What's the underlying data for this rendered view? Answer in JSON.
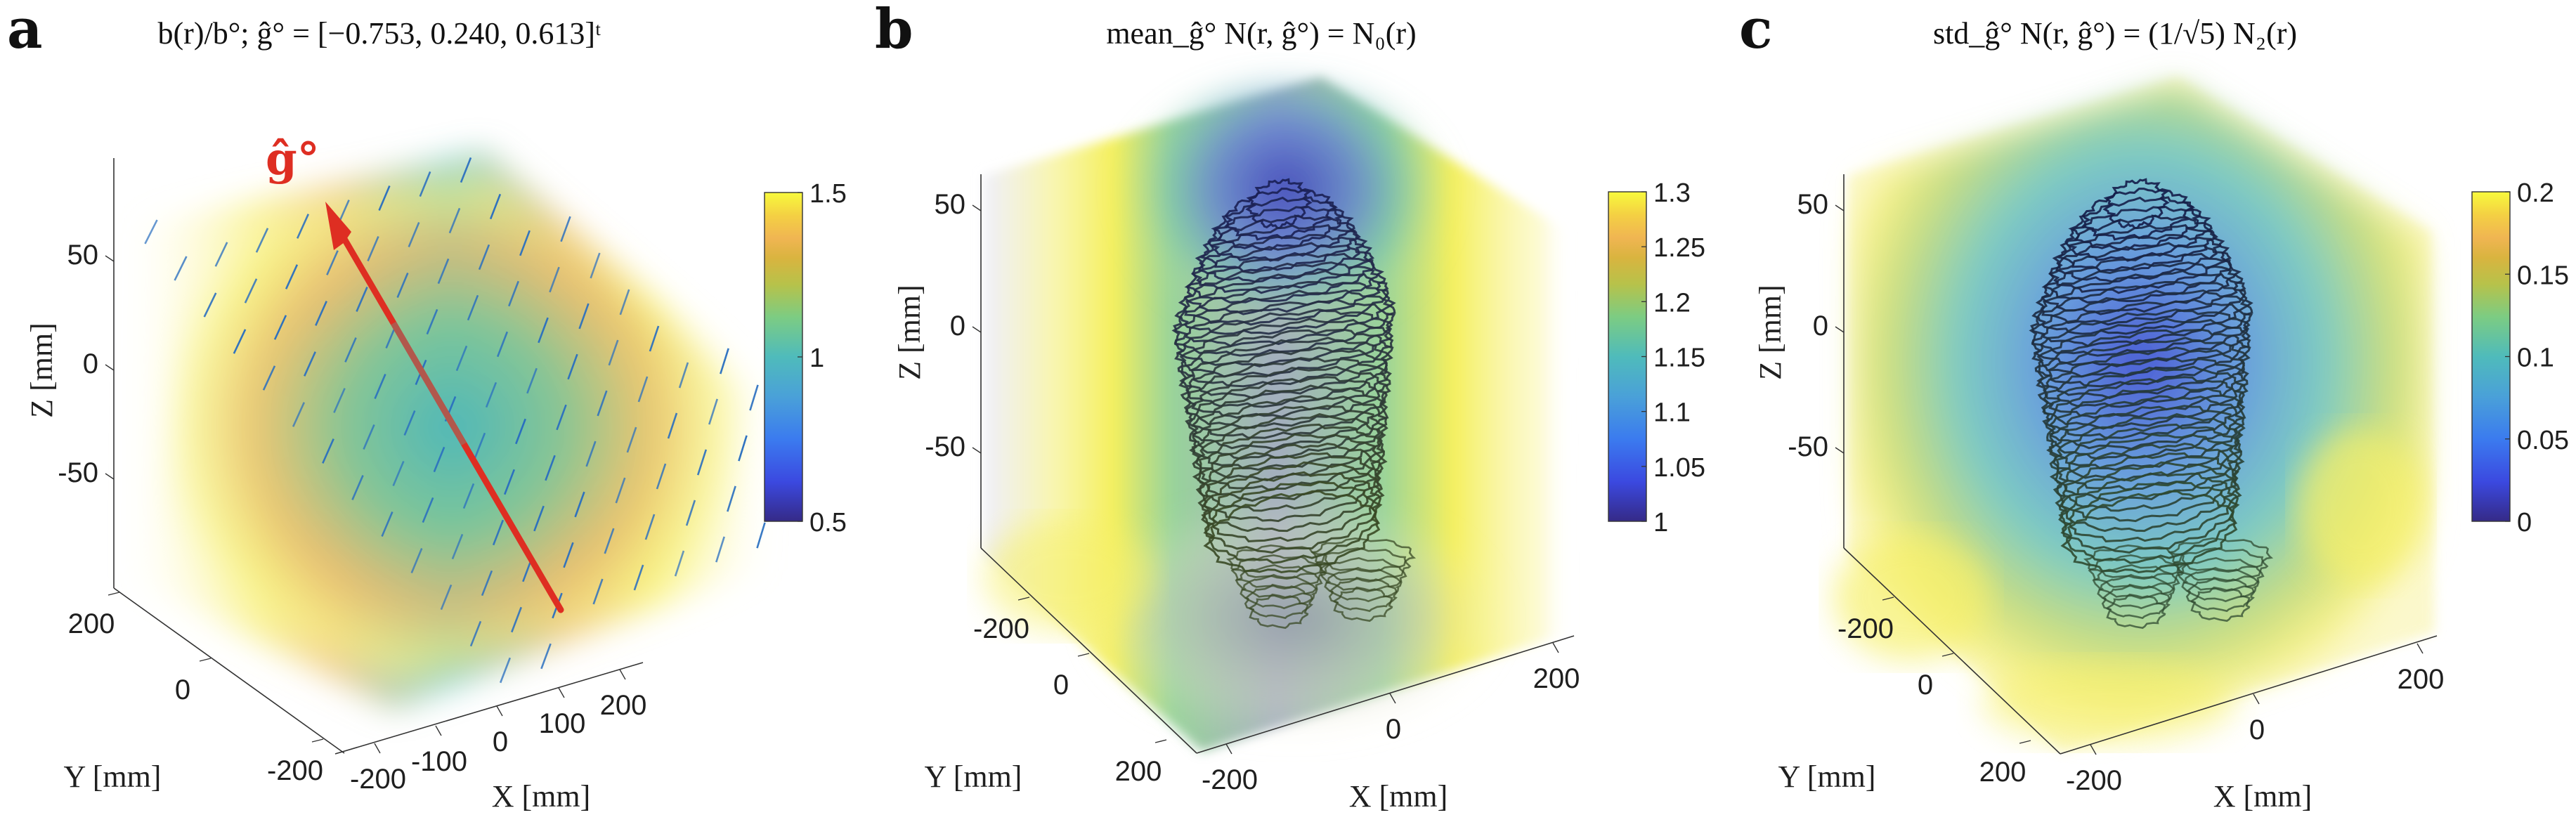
{
  "figure": {
    "panels": [
      {
        "letter": "a",
        "title": "b(r)/b°; ĝ° = [−0.753, 0.240, 0.613]ᵗ",
        "arrow_label": "ĝ°",
        "arrow_vector": [
          -0.753,
          0.24,
          0.613
        ],
        "arrow_color": "#de2e22",
        "quiver_color": "#2a6fc0",
        "overlay": "quiver",
        "colorbar": {
          "min": 0.5,
          "max": 1.5,
          "ticks": [
            "0.5",
            "1",
            "1.5"
          ],
          "tick_values": [
            0.5,
            1,
            1.5
          ]
        },
        "axes": {
          "x": {
            "label": "X [mm]",
            "ticks": [
              "-200",
              "-100",
              "0",
              "100",
              "200"
            ],
            "tick_values": [
              -200,
              -100,
              0,
              100,
              200
            ],
            "range": [
              -250,
              250
            ]
          },
          "y": {
            "label": "Y [mm]",
            "ticks": [
              "-200",
              "0",
              "200"
            ],
            "tick_values": [
              -200,
              0,
              200
            ],
            "range": [
              -250,
              250
            ]
          },
          "z": {
            "label": "Z [mm]",
            "ticks": [
              "-50",
              "0",
              "50"
            ],
            "tick_values": [
              -50,
              0,
              50
            ],
            "range": [
              -85,
              95
            ]
          }
        }
      },
      {
        "letter": "b",
        "title": "mean_ĝ° N(r, ĝ°) = N₀(r)",
        "overlay": "head",
        "colorbar": {
          "min": 1,
          "max": 1.3,
          "ticks": [
            "1",
            "1.05",
            "1.1",
            "1.15",
            "1.2",
            "1.25",
            "1.3"
          ],
          "tick_values": [
            1,
            1.05,
            1.1,
            1.15,
            1.2,
            1.25,
            1.3
          ]
        },
        "axes": {
          "x": {
            "label": "X [mm]",
            "ticks": [
              "-200",
              "0",
              "200"
            ],
            "tick_values": [
              -200,
              0,
              200
            ],
            "range": [
              -250,
              250
            ]
          },
          "y": {
            "label": "Y [mm]",
            "ticks": [
              "-200",
              "0",
              "200"
            ],
            "tick_values": [
              -200,
              0,
              200
            ],
            "range": [
              -250,
              250
            ]
          },
          "z": {
            "label": "Z [mm]",
            "ticks": [
              "-50",
              "0",
              "50"
            ],
            "tick_values": [
              -50,
              0,
              50
            ],
            "range": [
              -80,
              65
            ]
          }
        }
      },
      {
        "letter": "c",
        "title": "std_ĝ° N(r, ĝ°) = (1/√5) N₂(r)",
        "overlay": "head",
        "colorbar": {
          "min": 0,
          "max": 0.2,
          "ticks": [
            "0",
            "0.05",
            "0.1",
            "0.15",
            "0.2"
          ],
          "tick_values": [
            0,
            0.05,
            0.1,
            0.15,
            0.2
          ]
        },
        "axes": {
          "x": {
            "label": "X [mm]",
            "ticks": [
              "-200",
              "0",
              "200"
            ],
            "tick_values": [
              -200,
              0,
              200
            ],
            "range": [
              -250,
              250
            ]
          },
          "y": {
            "label": "Y [mm]",
            "ticks": [
              "-200",
              "0",
              "200"
            ],
            "tick_values": [
              -200,
              0,
              200
            ],
            "range": [
              -250,
              250
            ]
          },
          "z": {
            "label": "Z [mm]",
            "ticks": [
              "-50",
              "0",
              "50"
            ],
            "tick_values": [
              -50,
              0,
              50
            ],
            "range": [
              -80,
              65
            ]
          }
        }
      }
    ]
  },
  "chart_data": [
    {
      "type": "heatmap",
      "title": "b(r)/b°; ĝ° = [−0.753, 0.240, 0.613]ᵗ",
      "xlabel": "X [mm]",
      "ylabel": "Y [mm]",
      "zlabel": "Z [mm]",
      "colormap": "parula",
      "clim": [
        0.5,
        1.5
      ],
      "colorbar_ticks": [
        0.5,
        1,
        1.5
      ],
      "annotation": "ĝ° direction arrow with quiver field",
      "gradient_direction": [
        -0.753,
        0.24,
        0.613
      ]
    },
    {
      "type": "heatmap",
      "title": "mean_ĝ° N(r, ĝ°) = N₀(r)",
      "xlabel": "X [mm]",
      "ylabel": "Y [mm]",
      "zlabel": "Z [mm]",
      "colormap": "parula",
      "clim": [
        1,
        1.3
      ],
      "colorbar_ticks": [
        1,
        1.05,
        1.1,
        1.15,
        1.2,
        1.25,
        1.3
      ]
    },
    {
      "type": "heatmap",
      "title": "std_ĝ° N(r, ĝ°) = (1/√5) N₂(r)",
      "xlabel": "X [mm]",
      "ylabel": "Y [mm]",
      "zlabel": "Z [mm]",
      "colormap": "parula",
      "clim": [
        0,
        0.2
      ],
      "colorbar_ticks": [
        0,
        0.05,
        0.1,
        0.15,
        0.2
      ]
    }
  ]
}
